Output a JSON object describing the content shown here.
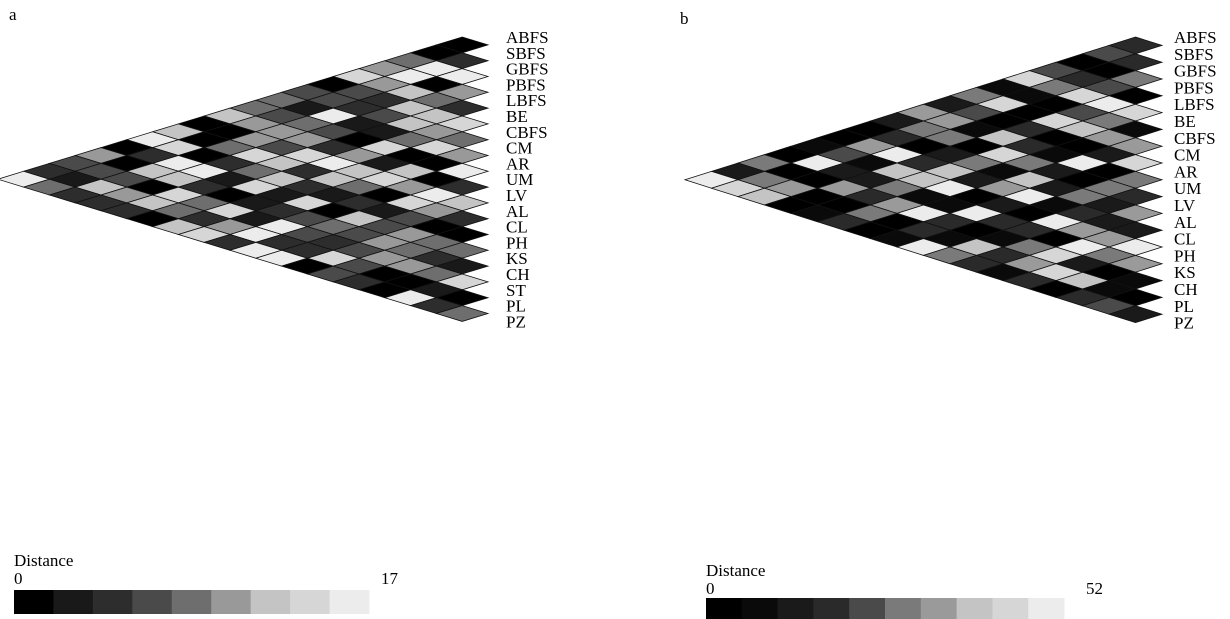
{
  "chart_data": [
    {
      "type": "heatmap",
      "panel": "a",
      "row_labels": [
        "ABFS",
        "SBFS",
        "GBFS",
        "PBFS",
        "LBFS",
        "BE",
        "CBFS",
        "CM",
        "AR",
        "UM",
        "LV",
        "AL",
        "CL",
        "PH",
        "KS",
        "CH",
        "ST",
        "PL",
        "PZ"
      ],
      "legend_title": "Distance",
      "scale_min": "0",
      "scale_max": "17",
      "scale_colors": [
        "#000000",
        "#191919",
        "#2d2d2d",
        "#4a4a4a",
        "#6e6e6e",
        "#999999",
        "#c4c4c4",
        "#d6d6d6",
        "#ececec"
      ],
      "value_range": [
        0,
        17
      ]
    },
    {
      "type": "heatmap",
      "panel": "b",
      "row_labels": [
        "ABFS",
        "SBFS",
        "GBFS",
        "PBFS",
        "LBFS",
        "BE",
        "CBFS",
        "CM",
        "AR",
        "UM",
        "LV",
        "AL",
        "CL",
        "PH",
        "KS",
        "CH",
        "PL",
        "PZ"
      ],
      "legend_title": "Distance",
      "scale_min": "0",
      "scale_max": "52",
      "scale_colors": [
        "#000000",
        "#0a0a0a",
        "#1a1a1a",
        "#2a2a2a",
        "#4a4a4a",
        "#7a7a7a",
        "#9a9a9a",
        "#c4c4c4",
        "#d6d6d6",
        "#ececec"
      ],
      "value_range": [
        0,
        52
      ]
    }
  ]
}
